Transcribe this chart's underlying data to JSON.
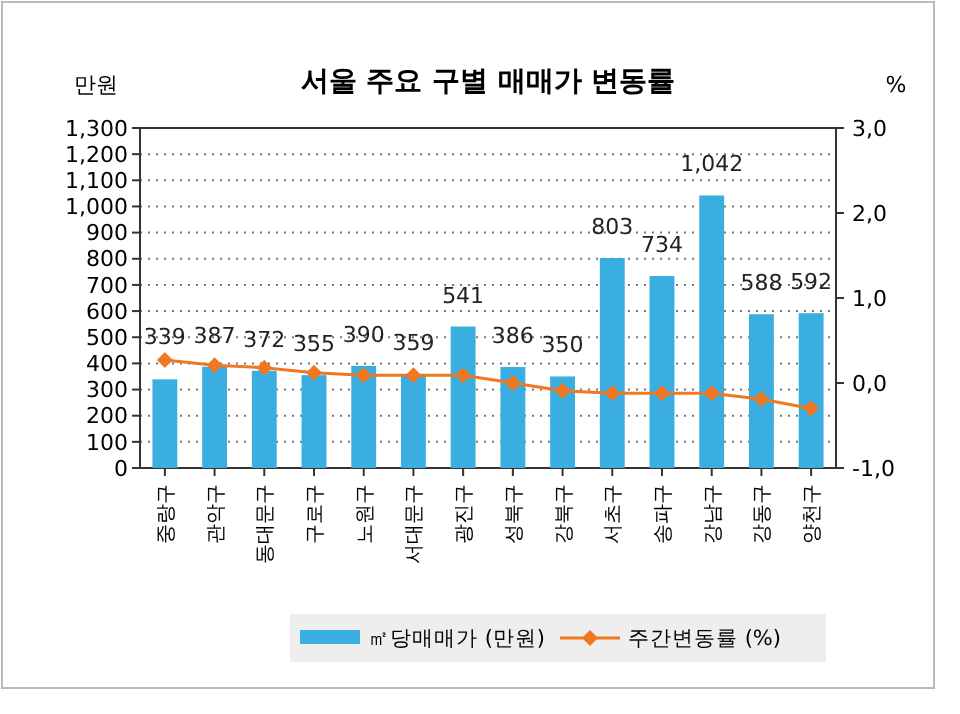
{
  "chart_data": {
    "type": "bar",
    "title": "서울 주요 구별 매매가 변동률",
    "ylabel": "만원",
    "y2label": "%",
    "categories": [
      "중랑구",
      "관악구",
      "동대문구",
      "구로구",
      "노원구",
      "서대문구",
      "광진구",
      "성북구",
      "강북구",
      "서초구",
      "송파구",
      "강남구",
      "강동구",
      "양천구"
    ],
    "series": [
      {
        "name": "㎡당매매가 (만원)",
        "color": "#3aaee0",
        "values": [
          339,
          387,
          372,
          355,
          390,
          359,
          541,
          386,
          350,
          803,
          734,
          1042,
          588,
          592
        ],
        "value_labels": [
          "339",
          "387",
          "372",
          "355",
          "390",
          "359",
          "541",
          "386",
          "350",
          "803",
          "734",
          "1,042",
          "588",
          "592"
        ]
      },
      {
        "name": "주간변동률 (%)",
        "type": "line",
        "axis": "y2",
        "color": "#f07820",
        "marker": "diamond",
        "values": [
          0.27,
          0.21,
          0.18,
          0.12,
          0.09,
          0.09,
          0.09,
          0.0,
          -0.09,
          -0.12,
          -0.12,
          -0.12,
          -0.19,
          -0.3
        ]
      }
    ],
    "ylim": [
      0,
      1300
    ],
    "yticks": [
      0,
      100,
      200,
      300,
      400,
      500,
      600,
      700,
      800,
      900,
      {
        "value": 1000,
        "label": "1,000"
      },
      {
        "value": 1100,
        "label": "1,100"
      },
      {
        "value": 1200,
        "label": "1,200"
      },
      {
        "value": 1300,
        "label": "1,300"
      }
    ],
    "y2lim": [
      -1,
      3
    ],
    "y2ticks": [
      {
        "value": -1,
        "label": "-1,0"
      },
      {
        "value": 0,
        "label": "0,0"
      },
      {
        "value": 1,
        "label": "1,0"
      },
      {
        "value": 2,
        "label": "2,0"
      },
      {
        "value": 3,
        "label": "3,0"
      }
    ],
    "grid": "y",
    "legend": "bottom"
  }
}
